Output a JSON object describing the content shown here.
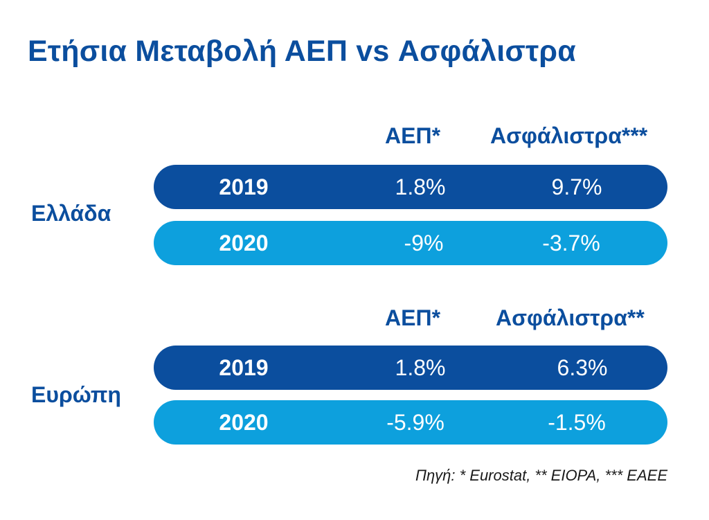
{
  "title": "Ετήσια Μεταβολή ΑΕΠ vs Ασφάλιστρα",
  "source": "Πηγή: * Eurostat, ** EIOPA, *** ΕΑΕΕ",
  "colors": {
    "title": "#0b4e9e",
    "row_2019": "#0b4e9e",
    "row_2020": "#0da0dd"
  },
  "chart_data": {
    "type": "table",
    "title": "Ετήσια Μεταβολή ΑΕΠ vs Ασφάλιστρα",
    "groups": [
      {
        "region": "Ελλάδα",
        "headers": [
          "ΑΕΠ*",
          "Ασφάλιστρα***"
        ],
        "rows": [
          {
            "year": "2019",
            "gdp": "1.8%",
            "premiums": "9.7%"
          },
          {
            "year": "2020",
            "gdp": "-9%",
            "premiums": "-3.7%"
          }
        ]
      },
      {
        "region": "Ευρώπη",
        "headers": [
          "ΑΕΠ*",
          "Ασφάλιστρα**"
        ],
        "rows": [
          {
            "year": "2019",
            "gdp": "1.8%",
            "premiums": "6.3%"
          },
          {
            "year": "2020",
            "gdp": "-5.9%",
            "premiums": "-1.5%"
          }
        ]
      }
    ]
  }
}
